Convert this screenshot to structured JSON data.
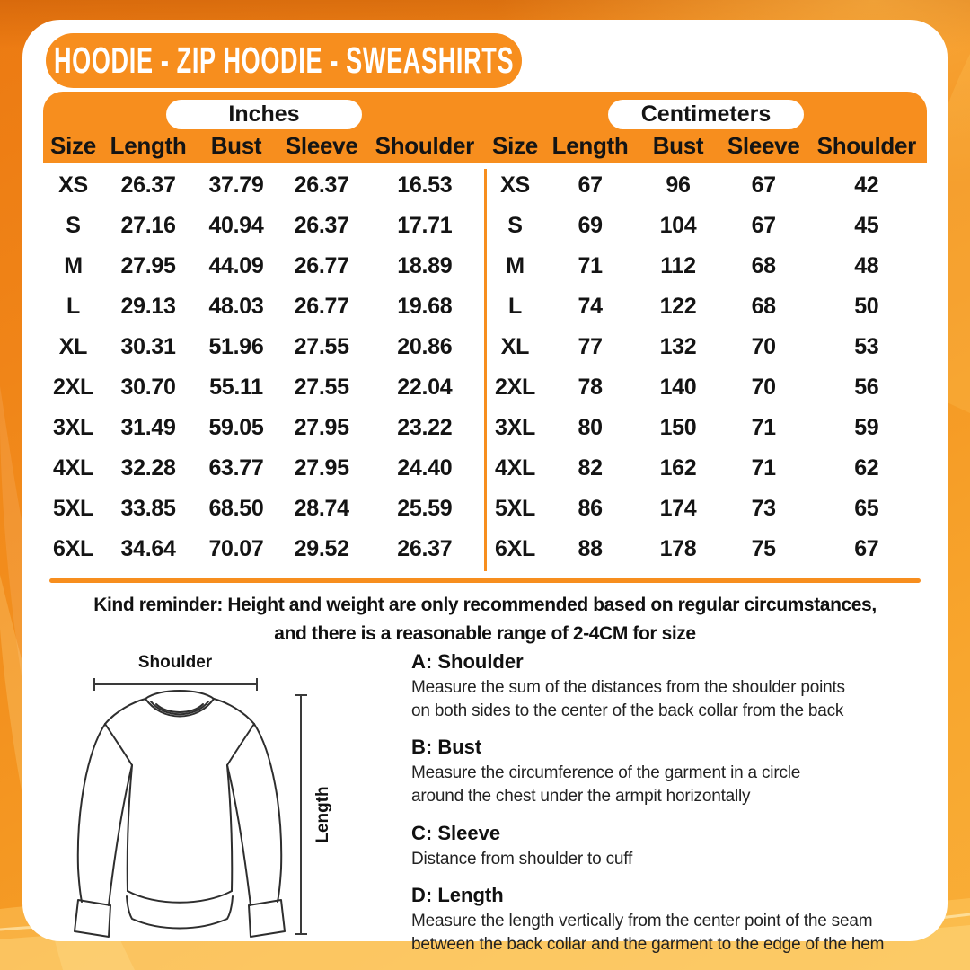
{
  "header": {
    "title": "HOODIE - ZIP HOODIE - SWEASHIRTS"
  },
  "size_chart": {
    "inches": {
      "unit_label": "Inches",
      "columns": [
        "Size",
        "Length",
        "Bust",
        "Sleeve",
        "Shoulder"
      ],
      "rows": [
        [
          "XS",
          "26.37",
          "37.79",
          "26.37",
          "16.53"
        ],
        [
          "S",
          "27.16",
          "40.94",
          "26.37",
          "17.71"
        ],
        [
          "M",
          "27.95",
          "44.09",
          "26.77",
          "18.89"
        ],
        [
          "L",
          "29.13",
          "48.03",
          "26.77",
          "19.68"
        ],
        [
          "XL",
          "30.31",
          "51.96",
          "27.55",
          "20.86"
        ],
        [
          "2XL",
          "30.70",
          "55.11",
          "27.55",
          "22.04"
        ],
        [
          "3XL",
          "31.49",
          "59.05",
          "27.95",
          "23.22"
        ],
        [
          "4XL",
          "32.28",
          "63.77",
          "27.95",
          "24.40"
        ],
        [
          "5XL",
          "33.85",
          "68.50",
          "28.74",
          "25.59"
        ],
        [
          "6XL",
          "34.64",
          "70.07",
          "29.52",
          "26.37"
        ]
      ]
    },
    "centimeters": {
      "unit_label": "Centimeters",
      "columns": [
        "Size",
        "Length",
        "Bust",
        "Sleeve",
        "Shoulder"
      ],
      "rows": [
        [
          "XS",
          "67",
          "96",
          "67",
          "42"
        ],
        [
          "S",
          "69",
          "104",
          "67",
          "45"
        ],
        [
          "M",
          "71",
          "112",
          "68",
          "48"
        ],
        [
          "L",
          "74",
          "122",
          "68",
          "50"
        ],
        [
          "XL",
          "77",
          "132",
          "70",
          "53"
        ],
        [
          "2XL",
          "78",
          "140",
          "70",
          "56"
        ],
        [
          "3XL",
          "80",
          "150",
          "71",
          "59"
        ],
        [
          "4XL",
          "82",
          "162",
          "71",
          "62"
        ],
        [
          "5XL",
          "86",
          "174",
          "73",
          "65"
        ],
        [
          "6XL",
          "88",
          "178",
          "75",
          "67"
        ]
      ]
    }
  },
  "reminder": {
    "line1": "Kind reminder: Height and weight are only recommended based on regular circumstances,",
    "line2": "and there is a reasonable range of 2-4CM for size"
  },
  "diagram": {
    "shoulder_label": "Shoulder",
    "length_label": "Length"
  },
  "instructions": [
    {
      "heading": "A: Shoulder",
      "body": "Measure the sum of the distances from the shoulder points\non both sides to the center of the back collar from the back"
    },
    {
      "heading": "B: Bust",
      "body": "Measure the circumference of the garment in a circle\naround the chest under the armpit horizontally"
    },
    {
      "heading": "C: Sleeve",
      "body": "Distance from shoulder to cuff"
    },
    {
      "heading": "D: Length",
      "body": "Measure the length vertically from the center point of the seam\nbetween the back collar and the garment to the edge of the hem"
    }
  ],
  "colors": {
    "accent_orange": "#F78E1E",
    "background_orange_dark": "#E8740E",
    "background_orange_light": "#FBAE3C",
    "text_black": "#141414",
    "card_white": "#FFFFFF"
  }
}
